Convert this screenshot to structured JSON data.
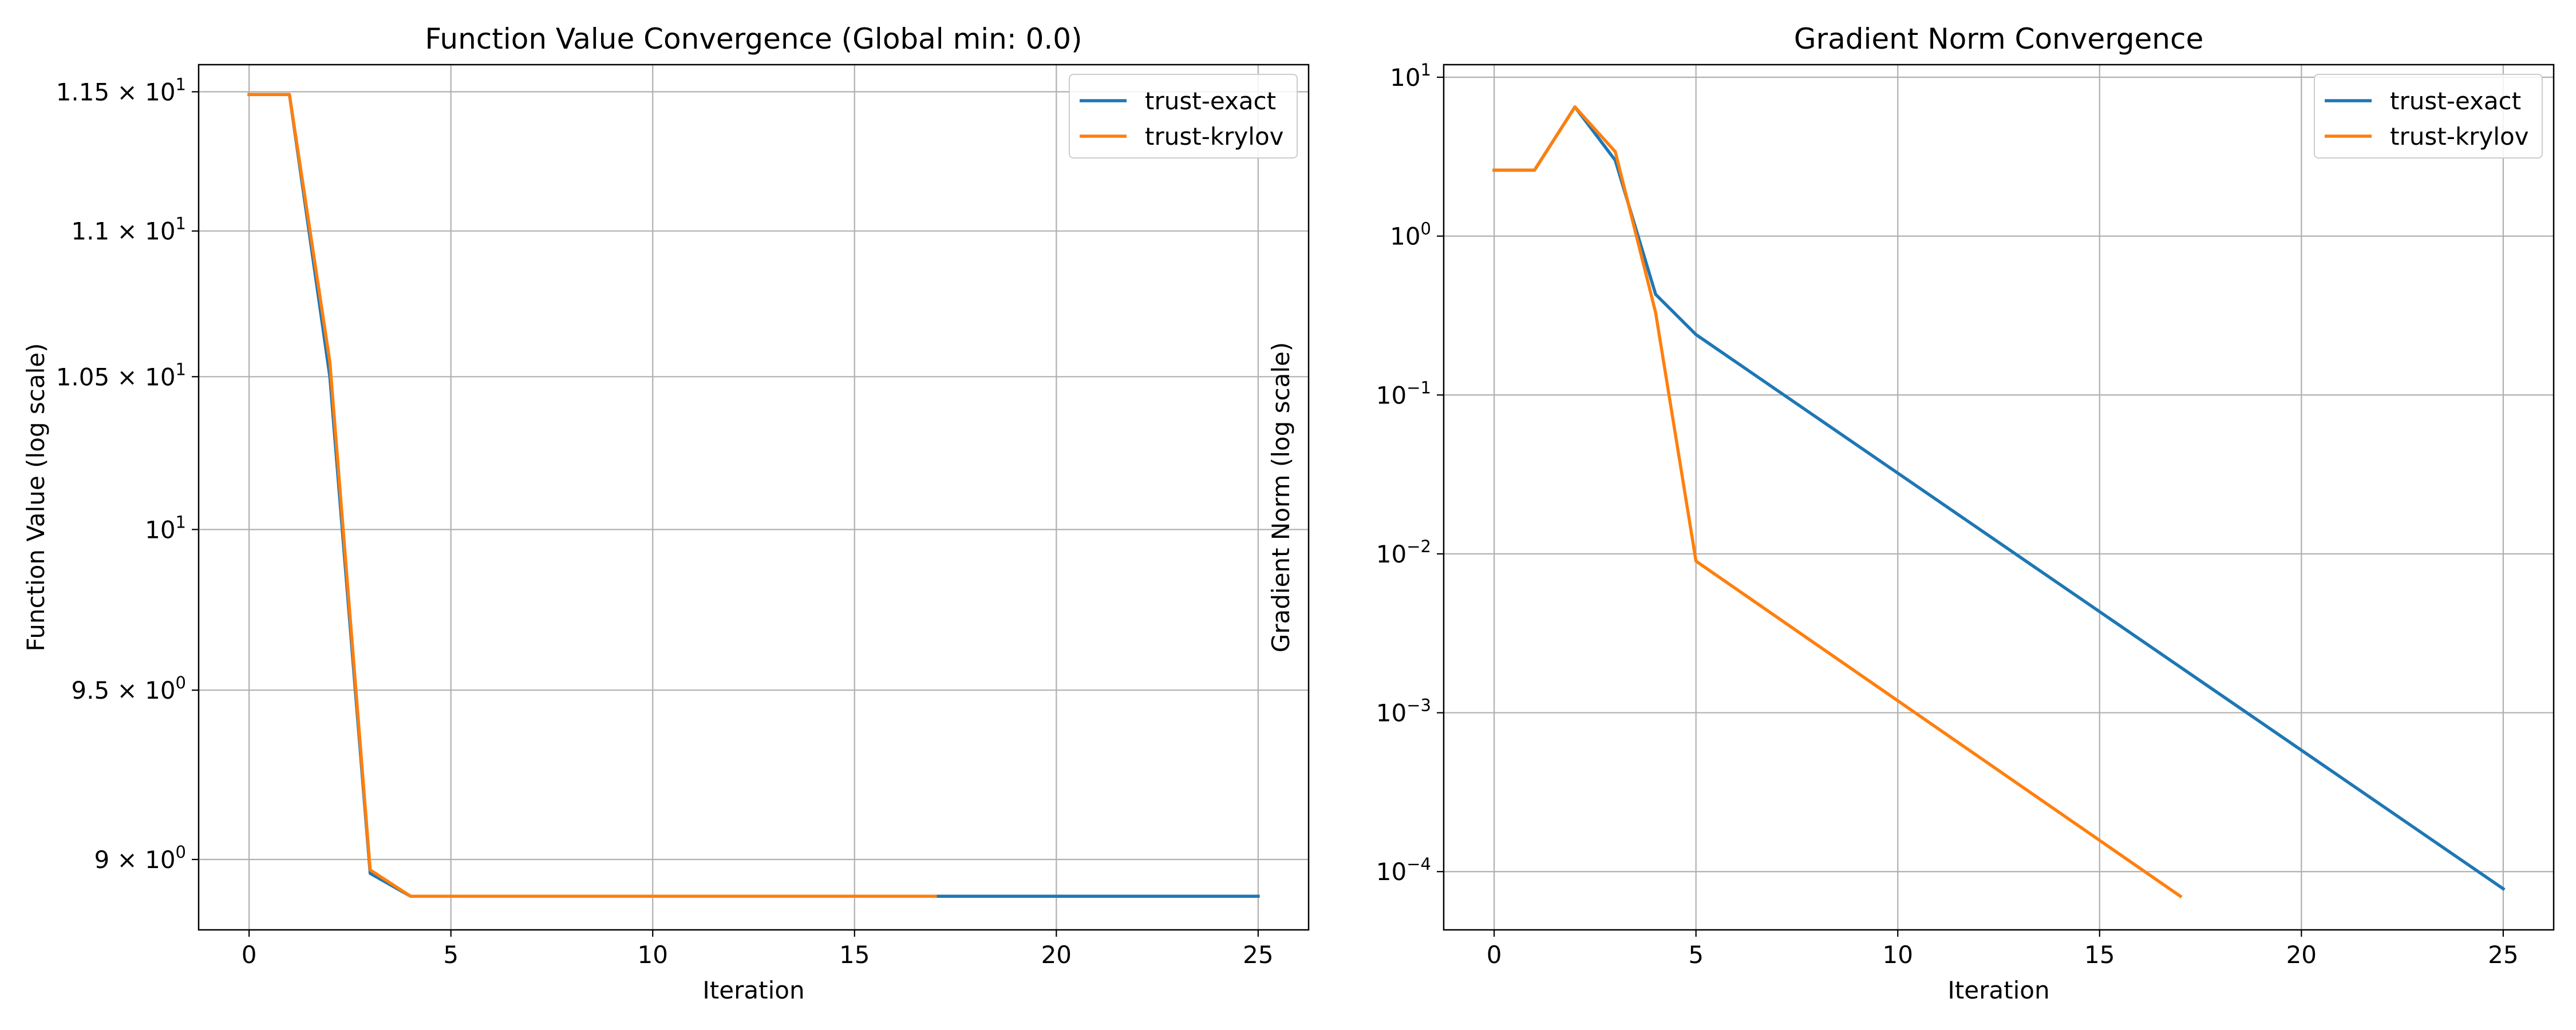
{
  "colors": {
    "trust_exact": "#1f77b4",
    "trust_krylov": "#ff7f0e",
    "grid": "#b0b0b0"
  },
  "chart_data": [
    {
      "type": "line",
      "title": "Function Value Convergence (Global min: 0.0)",
      "xlabel": "Iteration",
      "ylabel": "Function Value (log scale)",
      "yscale": "log",
      "xlim": [
        -1.25,
        26.25
      ],
      "ylim": [
        8.8,
        11.6
      ],
      "grid": true,
      "legend_position": "upper right",
      "x_ticks": [
        0,
        5,
        10,
        15,
        20,
        25
      ],
      "x_tick_labels": [
        "0",
        "5",
        "10",
        "15",
        "20",
        "25"
      ],
      "y_ticks": [
        {
          "value": 11.5,
          "mant": "1.15 × 10",
          "exp": "1"
        },
        {
          "value": 11.0,
          "mant": "1.1 × 10",
          "exp": "1"
        },
        {
          "value": 10.5,
          "mant": "1.05 × 10",
          "exp": "1"
        },
        {
          "value": 10.0,
          "mant": "10",
          "exp": "1"
        },
        {
          "value": 9.5,
          "mant": "9.5 × 10",
          "exp": "0"
        },
        {
          "value": 9.0,
          "mant": "9 × 10",
          "exp": "0"
        }
      ],
      "series": [
        {
          "name": "trust-exact",
          "color_key": "trust_exact",
          "x": [
            0,
            1,
            2,
            3,
            4,
            5,
            6,
            7,
            8,
            9,
            10,
            11,
            12,
            13,
            14,
            15,
            16,
            17,
            18,
            19,
            20,
            21,
            22,
            23,
            24,
            25
          ],
          "y": [
            11.49,
            11.49,
            10.5,
            8.96,
            8.895,
            8.895,
            8.895,
            8.895,
            8.895,
            8.895,
            8.895,
            8.895,
            8.895,
            8.895,
            8.895,
            8.895,
            8.895,
            8.895,
            8.895,
            8.895,
            8.895,
            8.895,
            8.895,
            8.895,
            8.895,
            8.895
          ]
        },
        {
          "name": "trust-krylov",
          "color_key": "trust_krylov",
          "x": [
            0,
            1,
            2,
            3,
            4,
            5,
            6,
            7,
            8,
            9,
            10,
            11,
            12,
            13,
            14,
            15,
            16,
            17
          ],
          "y": [
            11.49,
            11.49,
            10.55,
            8.97,
            8.895,
            8.895,
            8.895,
            8.895,
            8.895,
            8.895,
            8.895,
            8.895,
            8.895,
            8.895,
            8.895,
            8.895,
            8.895,
            8.895
          ]
        }
      ]
    },
    {
      "type": "line",
      "title": "Gradient Norm Convergence",
      "xlabel": "Iteration",
      "ylabel": "Gradient Norm (log scale)",
      "yscale": "log",
      "xlim": [
        -1.25,
        26.25
      ],
      "ylim": [
        4.3e-05,
        12
      ],
      "grid": true,
      "legend_position": "upper right",
      "x_ticks": [
        0,
        5,
        10,
        15,
        20,
        25
      ],
      "x_tick_labels": [
        "0",
        "5",
        "10",
        "15",
        "20",
        "25"
      ],
      "y_ticks": [
        {
          "value": 10,
          "mant": "10",
          "exp": "1"
        },
        {
          "value": 1,
          "mant": "10",
          "exp": "0"
        },
        {
          "value": 0.1,
          "mant": "10",
          "exp": "−1"
        },
        {
          "value": 0.01,
          "mant": "10",
          "exp": "−2"
        },
        {
          "value": 0.001,
          "mant": "10",
          "exp": "−3"
        },
        {
          "value": 0.0001,
          "mant": "10",
          "exp": "−4"
        }
      ],
      "series": [
        {
          "name": "trust-exact",
          "color_key": "trust_exact",
          "x": [
            0,
            1,
            2,
            3,
            4,
            5,
            25
          ],
          "y": [
            2.6,
            2.6,
            6.5,
            3.0,
            0.43,
            0.24,
            7.8e-05
          ]
        },
        {
          "name": "trust-krylov",
          "color_key": "trust_krylov",
          "x": [
            0,
            1,
            2,
            3,
            4,
            5,
            17
          ],
          "y": [
            2.6,
            2.6,
            6.5,
            3.4,
            0.33,
            0.009,
            7e-05
          ]
        }
      ]
    }
  ]
}
